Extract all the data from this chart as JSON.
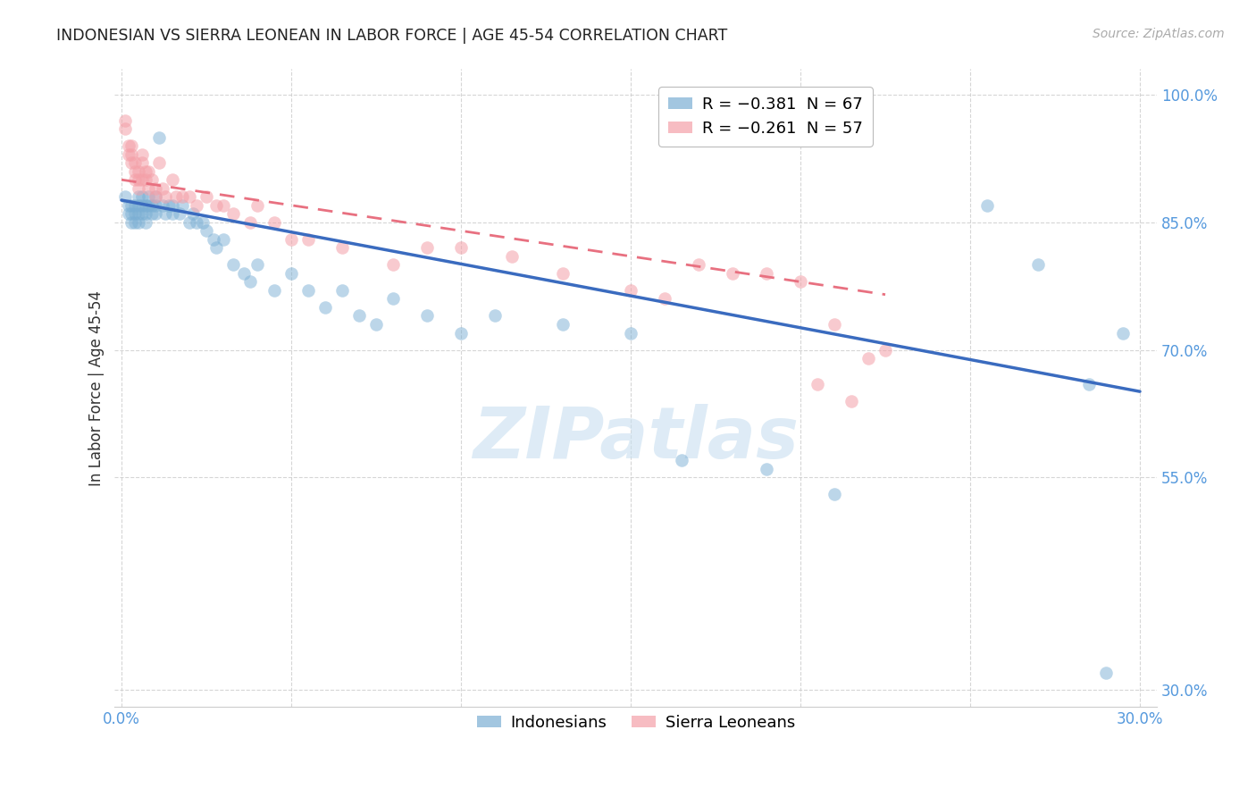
{
  "title": "INDONESIAN VS SIERRA LEONEAN IN LABOR FORCE | AGE 45-54 CORRELATION CHART",
  "source": "Source: ZipAtlas.com",
  "ylabel": "In Labor Force | Age 45-54",
  "xlim": [
    -0.002,
    0.305
  ],
  "ylim": [
    0.28,
    1.03
  ],
  "xticks": [
    0.0,
    0.05,
    0.1,
    0.15,
    0.2,
    0.25,
    0.3
  ],
  "xtick_labels": [
    "0.0%",
    "",
    "",
    "",
    "",
    "",
    "30.0%"
  ],
  "yticks": [
    0.3,
    0.55,
    0.7,
    0.85,
    1.0
  ],
  "ytick_labels": [
    "30.0%",
    "55.0%",
    "70.0%",
    "85.0%",
    "100.0%"
  ],
  "blue_color": "#7bafd4",
  "pink_color": "#f4a0a8",
  "blue_line_color": "#3a6bbf",
  "pink_line_color": "#e87080",
  "axis_tick_color": "#5599dd",
  "grid_color": "#cccccc",
  "title_color": "#222222",
  "source_color": "#aaaaaa",
  "watermark": "ZIPatlas",
  "watermark_color": "#c8dff0",
  "indonesian_x": [
    0.001,
    0.002,
    0.002,
    0.003,
    0.003,
    0.003,
    0.004,
    0.004,
    0.004,
    0.005,
    0.005,
    0.005,
    0.005,
    0.006,
    0.006,
    0.006,
    0.007,
    0.007,
    0.007,
    0.008,
    0.008,
    0.009,
    0.009,
    0.01,
    0.01,
    0.01,
    0.011,
    0.012,
    0.013,
    0.014,
    0.015,
    0.015,
    0.017,
    0.018,
    0.02,
    0.021,
    0.022,
    0.024,
    0.025,
    0.027,
    0.028,
    0.03,
    0.033,
    0.036,
    0.038,
    0.04,
    0.045,
    0.05,
    0.055,
    0.06,
    0.065,
    0.07,
    0.075,
    0.08,
    0.09,
    0.1,
    0.11,
    0.13,
    0.15,
    0.165,
    0.19,
    0.21,
    0.255,
    0.27,
    0.285,
    0.29,
    0.295
  ],
  "indonesian_y": [
    0.88,
    0.87,
    0.86,
    0.87,
    0.86,
    0.85,
    0.87,
    0.86,
    0.85,
    0.88,
    0.87,
    0.86,
    0.85,
    0.88,
    0.87,
    0.86,
    0.87,
    0.86,
    0.85,
    0.88,
    0.87,
    0.87,
    0.86,
    0.88,
    0.87,
    0.86,
    0.95,
    0.87,
    0.86,
    0.87,
    0.87,
    0.86,
    0.86,
    0.87,
    0.85,
    0.86,
    0.85,
    0.85,
    0.84,
    0.83,
    0.82,
    0.83,
    0.8,
    0.79,
    0.78,
    0.8,
    0.77,
    0.79,
    0.77,
    0.75,
    0.77,
    0.74,
    0.73,
    0.76,
    0.74,
    0.72,
    0.74,
    0.73,
    0.72,
    0.57,
    0.56,
    0.53,
    0.87,
    0.8,
    0.66,
    0.32,
    0.72
  ],
  "sierraleone_x": [
    0.001,
    0.001,
    0.002,
    0.002,
    0.003,
    0.003,
    0.003,
    0.004,
    0.004,
    0.004,
    0.005,
    0.005,
    0.005,
    0.006,
    0.006,
    0.006,
    0.007,
    0.007,
    0.008,
    0.008,
    0.009,
    0.01,
    0.01,
    0.011,
    0.012,
    0.013,
    0.015,
    0.016,
    0.018,
    0.02,
    0.022,
    0.025,
    0.028,
    0.03,
    0.033,
    0.038,
    0.04,
    0.045,
    0.05,
    0.055,
    0.065,
    0.08,
    0.09,
    0.1,
    0.115,
    0.13,
    0.15,
    0.16,
    0.17,
    0.18,
    0.19,
    0.2,
    0.205,
    0.21,
    0.215,
    0.22,
    0.225
  ],
  "sierraleone_y": [
    0.97,
    0.96,
    0.94,
    0.93,
    0.94,
    0.93,
    0.92,
    0.92,
    0.91,
    0.9,
    0.91,
    0.9,
    0.89,
    0.93,
    0.92,
    0.9,
    0.91,
    0.9,
    0.91,
    0.89,
    0.9,
    0.89,
    0.88,
    0.92,
    0.89,
    0.88,
    0.9,
    0.88,
    0.88,
    0.88,
    0.87,
    0.88,
    0.87,
    0.87,
    0.86,
    0.85,
    0.87,
    0.85,
    0.83,
    0.83,
    0.82,
    0.8,
    0.82,
    0.82,
    0.81,
    0.79,
    0.77,
    0.76,
    0.8,
    0.79,
    0.79,
    0.78,
    0.66,
    0.73,
    0.64,
    0.69,
    0.7
  ],
  "blue_line_x": [
    0.0,
    0.3
  ],
  "blue_line_y": [
    0.876,
    0.651
  ],
  "pink_line_x": [
    0.0,
    0.225
  ],
  "pink_line_y": [
    0.9,
    0.765
  ],
  "legend_blue_label": "R = −0.381  N = 67",
  "legend_pink_label": "R = −0.261  N = 57",
  "legend_indonesian": "Indonesians",
  "legend_sierraleone": "Sierra Leoneans",
  "figsize": [
    14.06,
    8.92
  ],
  "dpi": 100
}
